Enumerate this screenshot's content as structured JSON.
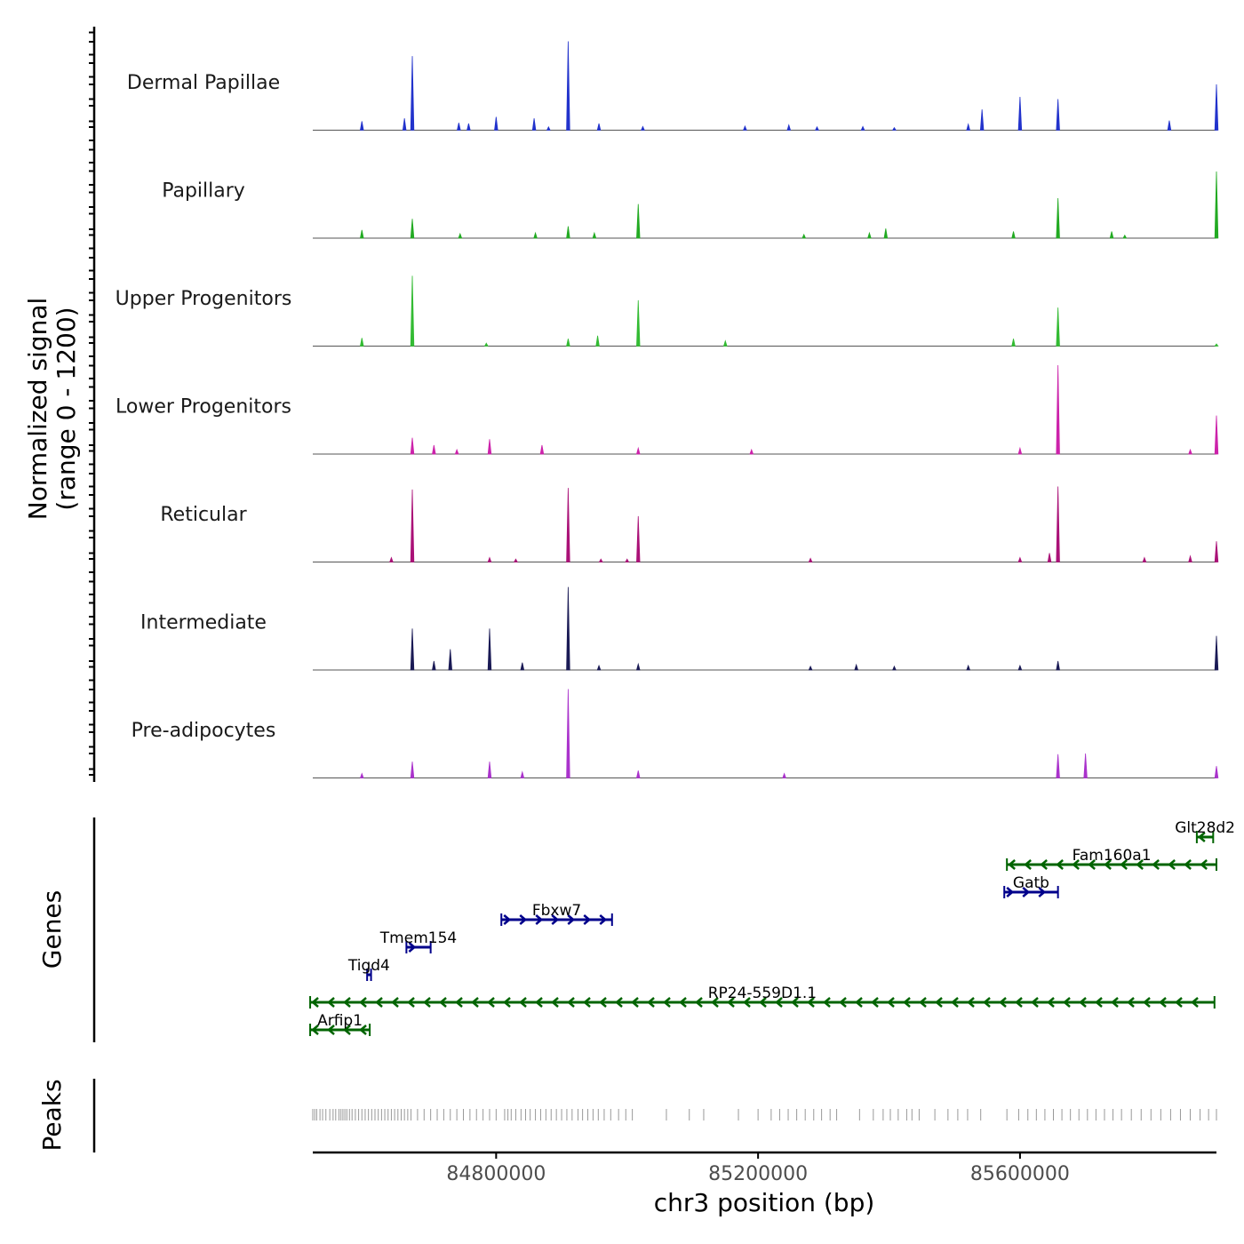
{
  "chart_data": {
    "type": "genome-coverage-tracks",
    "chromosome": "chr3",
    "region": [
      84520000,
      85900000
    ],
    "signal_panel": {
      "ylabel_line1": "Normalized signal",
      "ylabel_line2": "(range 0 - 1200)",
      "ylim": [
        0,
        1200
      ],
      "tracks": [
        {
          "name": "Dermal Papillae",
          "color": "#2233cc",
          "peaks": [
            [
              84595000,
              120
            ],
            [
              84660000,
              160
            ],
            [
              84672000,
              1000
            ],
            [
              84743000,
              100
            ],
            [
              84758000,
              90
            ],
            [
              84800000,
              180
            ],
            [
              84858000,
              160
            ],
            [
              84880000,
              45
            ],
            [
              84910000,
              1200
            ],
            [
              84957000,
              90
            ],
            [
              85024000,
              50
            ],
            [
              85180000,
              55
            ],
            [
              85247000,
              70
            ],
            [
              85290000,
              45
            ],
            [
              85360000,
              50
            ],
            [
              85408000,
              35
            ],
            [
              85521000,
              80
            ],
            [
              85542000,
              280
            ],
            [
              85600000,
              450
            ],
            [
              85658000,
              420
            ],
            [
              85828000,
              130
            ],
            [
              85900000,
              620
            ]
          ]
        },
        {
          "name": "Papillary",
          "color": "#22aa22",
          "peaks": [
            [
              84595000,
              110
            ],
            [
              84672000,
              260
            ],
            [
              84745000,
              60
            ],
            [
              84860000,
              70
            ],
            [
              84910000,
              160
            ],
            [
              84950000,
              70
            ],
            [
              85017000,
              460
            ],
            [
              85270000,
              50
            ],
            [
              85370000,
              70
            ],
            [
              85395000,
              130
            ],
            [
              85590000,
              90
            ],
            [
              85658000,
              540
            ],
            [
              85740000,
              90
            ],
            [
              85760000,
              40
            ],
            [
              85900000,
              900
            ]
          ]
        },
        {
          "name": "Upper Progenitors",
          "color": "#33bb33",
          "peaks": [
            [
              84595000,
              110
            ],
            [
              84672000,
              950
            ],
            [
              84785000,
              40
            ],
            [
              84910000,
              100
            ],
            [
              84955000,
              140
            ],
            [
              85017000,
              620
            ],
            [
              85150000,
              70
            ],
            [
              85590000,
              100
            ],
            [
              85658000,
              520
            ],
            [
              85900000,
              30
            ]
          ]
        },
        {
          "name": "Lower Progenitors",
          "color": "#cc22aa",
          "peaks": [
            [
              84672000,
              220
            ],
            [
              84705000,
              120
            ],
            [
              84740000,
              60
            ],
            [
              84790000,
              200
            ],
            [
              84870000,
              120
            ],
            [
              85017000,
              80
            ],
            [
              85190000,
              60
            ],
            [
              85600000,
              80
            ],
            [
              85658000,
              1200
            ],
            [
              85860000,
              60
            ],
            [
              85900000,
              520
            ]
          ]
        },
        {
          "name": "Reticular",
          "color": "#aa1177",
          "peaks": [
            [
              84640000,
              60
            ],
            [
              84672000,
              980
            ],
            [
              84790000,
              60
            ],
            [
              84830000,
              40
            ],
            [
              84910000,
              1000
            ],
            [
              84960000,
              40
            ],
            [
              85000000,
              40
            ],
            [
              85017000,
              620
            ],
            [
              85280000,
              50
            ],
            [
              85600000,
              60
            ],
            [
              85645000,
              120
            ],
            [
              85658000,
              1020
            ],
            [
              85790000,
              60
            ],
            [
              85860000,
              80
            ],
            [
              85900000,
              280
            ]
          ]
        },
        {
          "name": "Intermediate",
          "color": "#1a1a55",
          "peaks": [
            [
              84672000,
              560
            ],
            [
              84705000,
              120
            ],
            [
              84730000,
              280
            ],
            [
              84790000,
              560
            ],
            [
              84840000,
              100
            ],
            [
              84910000,
              1120
            ],
            [
              84957000,
              60
            ],
            [
              85017000,
              80
            ],
            [
              85280000,
              50
            ],
            [
              85350000,
              70
            ],
            [
              85408000,
              50
            ],
            [
              85521000,
              60
            ],
            [
              85600000,
              60
            ],
            [
              85658000,
              120
            ],
            [
              85900000,
              460
            ]
          ]
        },
        {
          "name": "Pre-adipocytes",
          "color": "#aa33cc",
          "peaks": [
            [
              84595000,
              60
            ],
            [
              84672000,
              220
            ],
            [
              84790000,
              220
            ],
            [
              84840000,
              80
            ],
            [
              84910000,
              1200
            ],
            [
              85017000,
              100
            ],
            [
              85240000,
              60
            ],
            [
              85658000,
              320
            ],
            [
              85700000,
              330
            ],
            [
              85900000,
              160
            ]
          ]
        }
      ]
    },
    "genes_panel": {
      "label": "Genes",
      "genes": [
        {
          "name": "Glt28d2",
          "start": 85870000,
          "end": 85895000,
          "strand": "-",
          "row": 1,
          "color": "#006400"
        },
        {
          "name": "Fam160a1",
          "start": 85580000,
          "end": 85900000,
          "strand": "-",
          "row": 2,
          "color": "#006400"
        },
        {
          "name": "Gatb",
          "start": 85576000,
          "end": 85658000,
          "strand": "+",
          "row": 3,
          "color": "#00008b"
        },
        {
          "name": "Fbxw7",
          "start": 84808000,
          "end": 84977000,
          "strand": "+",
          "row": 4,
          "color": "#00008b"
        },
        {
          "name": "Tmem154",
          "start": 84663000,
          "end": 84700000,
          "strand": "+",
          "row": 5,
          "color": "#00008b"
        },
        {
          "name": "Tigd4",
          "start": 84603000,
          "end": 84609000,
          "strand": "+",
          "row": 6,
          "color": "#00008b"
        },
        {
          "name": "RP24-559D1.1",
          "start": 84516000,
          "end": 85897000,
          "strand": "-",
          "row": 7,
          "color": "#006400"
        },
        {
          "name": "Arfip1",
          "start": 84516000,
          "end": 84607000,
          "strand": "-",
          "row": 8,
          "color": "#006400"
        }
      ]
    },
    "peaks_panel": {
      "label": "Peaks",
      "color": "#999999",
      "peaks": [
        84520000,
        84523000,
        84526000,
        84531000,
        84535000,
        84540000,
        84546000,
        84551000,
        84555000,
        84560000,
        84563000,
        84566000,
        84569000,
        84572000,
        84576000,
        84580000,
        84585000,
        84590000,
        84595000,
        84600000,
        84605000,
        84610000,
        84615000,
        84620000,
        84625000,
        84630000,
        84635000,
        84640000,
        84645000,
        84650000,
        84655000,
        84660000,
        84665000,
        84670000,
        84680000,
        84690000,
        84700000,
        84710000,
        84720000,
        84730000,
        84740000,
        84750000,
        84760000,
        84770000,
        84780000,
        84790000,
        84800000,
        84813000,
        84818000,
        84823000,
        84830000,
        84838000,
        84845000,
        84852000,
        84860000,
        84868000,
        84876000,
        84884000,
        84892000,
        84900000,
        84908000,
        84916000,
        84925000,
        84932000,
        84940000,
        84948000,
        84956000,
        84965000,
        84975000,
        84987000,
        84998000,
        85008000,
        85060000,
        85095000,
        85117000,
        85170000,
        85200000,
        85220000,
        85233000,
        85246000,
        85259000,
        85272000,
        85285000,
        85297000,
        85310000,
        85320000,
        85355000,
        85376000,
        85391000,
        85402000,
        85414000,
        85427000,
        85435000,
        85446000,
        85470000,
        85490000,
        85505000,
        85520000,
        85540000,
        85580000,
        85598000,
        85612000,
        85625000,
        85638000,
        85651000,
        85664000,
        85677000,
        85690000,
        85703000,
        85716000,
        85729000,
        85742000,
        85755000,
        85770000,
        85785000,
        85800000,
        85815000,
        85830000,
        85845000,
        85860000,
        85875000,
        85888000,
        85900000
      ]
    },
    "x_axis": {
      "label": "chr3 position (bp)",
      "ticks": [
        84800000,
        85200000,
        85600000
      ],
      "tick_labels": [
        "84800000",
        "85200000",
        "85600000"
      ]
    }
  }
}
